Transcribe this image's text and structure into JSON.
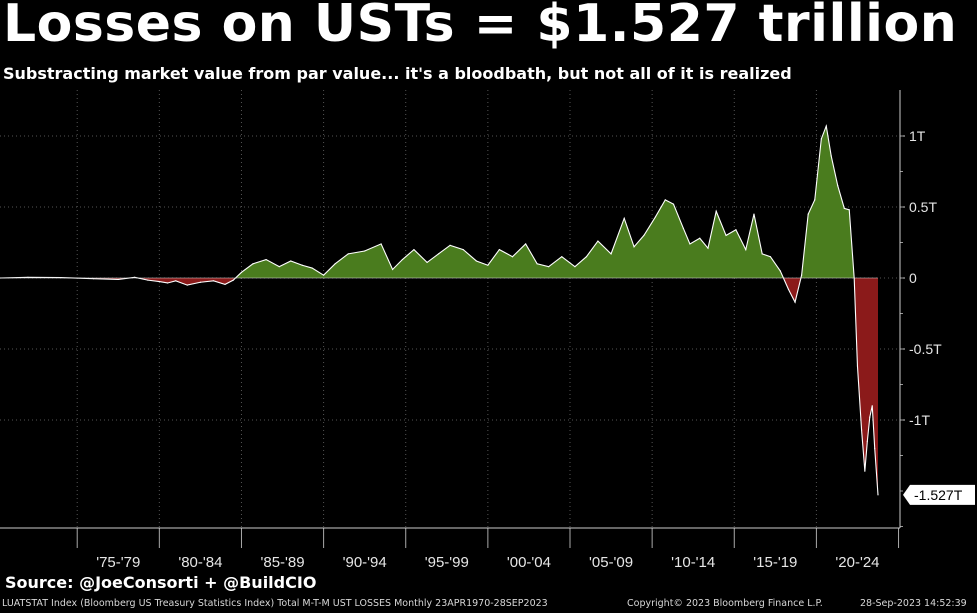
{
  "title": "Losses on USTs = $1.527 trillion",
  "subtitle": "Substracting market value from par value... it's a bloodbath, but not all of it is realized",
  "source": "Source: @JoeConsorti + @BuildCIO",
  "footer": {
    "description": "LUATSTAT Index (Bloomberg US Treasury Statistics Index) Total M-T-M UST LOSSES  Monthly 23APR1970-28SEP2023",
    "copyright": "Copyright© 2023 Bloomberg Finance L.P.",
    "timestamp": "28-Sep-2023 14:52:39"
  },
  "colors": {
    "positive": "#4a7c1e",
    "negative": "#8b1a1a",
    "line": "#ffffff",
    "background": "#000000"
  },
  "chart_data": {
    "type": "area",
    "y_unit": "trillion USD",
    "ylim": [
      -1.75,
      1.2
    ],
    "y_ticks": [
      {
        "value": 1,
        "label": "1T"
      },
      {
        "value": 0.5,
        "label": "0.5T"
      },
      {
        "value": 0,
        "label": "0"
      },
      {
        "value": -0.5,
        "label": "-0.5T"
      },
      {
        "value": -1,
        "label": "-1T"
      }
    ],
    "last_value_label": "-1.527T",
    "x_range": [
      1970.3,
      2023.75
    ],
    "x_tick_labels": [
      "'75-'79",
      "'80-'84",
      "'85-'89",
      "'90-'94",
      "'95-'99",
      "'00-'04",
      "'05-'09",
      "'10-'14",
      "'15-'19",
      "'20-'24"
    ],
    "x_tick_starts": [
      1975,
      1980,
      1985,
      1990,
      1995,
      2000,
      2005,
      2010,
      2015,
      2020
    ],
    "grid": true,
    "series": [
      {
        "x": [
          1970.3,
          1972,
          1974,
          1976,
          1977.5,
          1978.5,
          1979.3,
          1980,
          1980.5,
          1981,
          1981.7,
          1982.5,
          1983.3,
          1984,
          1984.5,
          1985,
          1985.7,
          1986.5,
          1987.3,
          1988,
          1988.7,
          1989.3,
          1990,
          1990.7,
          1991.5,
          1992.5,
          1993.5,
          1994.2,
          1994.8,
          1995.5,
          1996.3,
          1997,
          1997.7,
          1998.5,
          1999.3,
          2000,
          2000.7,
          2001.5,
          2002.3,
          2003,
          2003.7,
          2004.5,
          2005.3,
          2006,
          2006.7,
          2007.5,
          2008.3,
          2008.9,
          2009.5,
          2010.2,
          2010.8,
          2011.3,
          2011.9,
          2012.3,
          2012.9,
          2013.4,
          2013.9,
          2014.5,
          2015.1,
          2015.7,
          2016.2,
          2016.7,
          2017.2,
          2017.8,
          2018.3,
          2018.7,
          2019.1,
          2019.5,
          2019.9,
          2020.3,
          2020.6,
          2020.9,
          2021.3,
          2021.7,
          2022.0,
          2022.3,
          2022.5,
          2022.75,
          2022.95,
          2023.1,
          2023.25,
          2023.4,
          2023.55,
          2023.75
        ],
        "y": [
          0,
          0.005,
          0.003,
          -0.005,
          -0.01,
          0.005,
          -0.015,
          -0.025,
          -0.035,
          -0.02,
          -0.05,
          -0.03,
          -0.02,
          -0.045,
          -0.015,
          0.04,
          0.1,
          0.13,
          0.08,
          0.12,
          0.09,
          0.07,
          0.02,
          0.1,
          0.17,
          0.19,
          0.24,
          0.06,
          0.13,
          0.2,
          0.11,
          0.17,
          0.23,
          0.2,
          0.12,
          0.09,
          0.2,
          0.15,
          0.24,
          0.1,
          0.08,
          0.15,
          0.08,
          0.15,
          0.26,
          0.17,
          0.42,
          0.22,
          0.3,
          0.43,
          0.55,
          0.52,
          0.35,
          0.24,
          0.28,
          0.21,
          0.47,
          0.3,
          0.34,
          0.2,
          0.45,
          0.17,
          0.15,
          0.05,
          -0.08,
          -0.17,
          0.02,
          0.45,
          0.55,
          0.98,
          1.07,
          0.86,
          0.65,
          0.49,
          0.48,
          0,
          -0.62,
          -1.07,
          -1.36,
          -1.15,
          -0.98,
          -0.9,
          -1.2,
          -1.527
        ]
      }
    ]
  }
}
